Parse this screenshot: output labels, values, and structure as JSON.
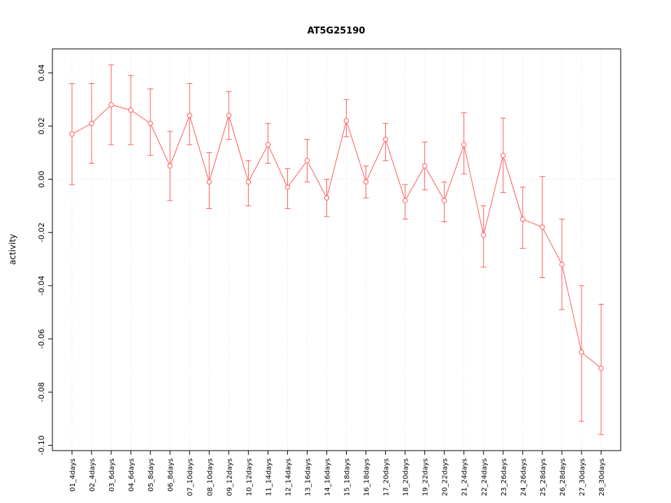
{
  "chart_data": {
    "type": "line",
    "title": "AT5G25190",
    "xlabel": "",
    "ylabel": "activity",
    "ylim": [
      -0.102,
      0.049
    ],
    "yticks": [
      0.04,
      0.02,
      0.0,
      -0.02,
      -0.04,
      -0.06,
      -0.08,
      -0.1
    ],
    "grid": true,
    "legend": "none",
    "series_color": "#ff5c5c",
    "grid_color": "#dedede",
    "marker": "open-circle",
    "error_bars": true,
    "categories": [
      "01_4days",
      "02_4days",
      "03_6days",
      "04_6days",
      "05_8days",
      "06_8days",
      "07_10days",
      "08_10days",
      "09_12days",
      "10_12days",
      "11_14days",
      "12_14days",
      "13_16days",
      "14_16days",
      "15_18days",
      "16_18days",
      "17_20days",
      "18_20days",
      "19_22days",
      "20_22days",
      "21_24days",
      "22_24days",
      "23_26days",
      "24_26days",
      "25_28days",
      "26_28days",
      "27_30days",
      "28_30days"
    ],
    "means": [
      0.017,
      0.021,
      0.028,
      0.026,
      0.021,
      0.005,
      0.024,
      -0.001,
      0.024,
      -0.001,
      0.013,
      -0.003,
      0.007,
      -0.007,
      0.022,
      -0.001,
      0.015,
      -0.008,
      0.005,
      -0.008,
      0.013,
      -0.021,
      0.009,
      -0.015,
      -0.018,
      -0.032,
      -0.065,
      -0.071
    ],
    "lower": [
      -0.002,
      0.006,
      0.013,
      0.013,
      0.009,
      -0.008,
      0.013,
      -0.011,
      0.015,
      -0.01,
      0.006,
      -0.011,
      -0.001,
      -0.014,
      0.016,
      -0.007,
      0.007,
      -0.015,
      -0.004,
      -0.016,
      0.002,
      -0.033,
      -0.005,
      -0.026,
      -0.037,
      -0.049,
      -0.091,
      -0.096
    ],
    "upper": [
      0.036,
      0.036,
      0.043,
      0.039,
      0.034,
      0.018,
      0.036,
      0.01,
      0.033,
      0.007,
      0.021,
      0.004,
      0.015,
      0.0,
      0.03,
      0.005,
      0.021,
      -0.002,
      0.014,
      -0.001,
      0.025,
      -0.01,
      0.023,
      -0.003,
      0.001,
      -0.015,
      -0.04,
      -0.047
    ]
  }
}
